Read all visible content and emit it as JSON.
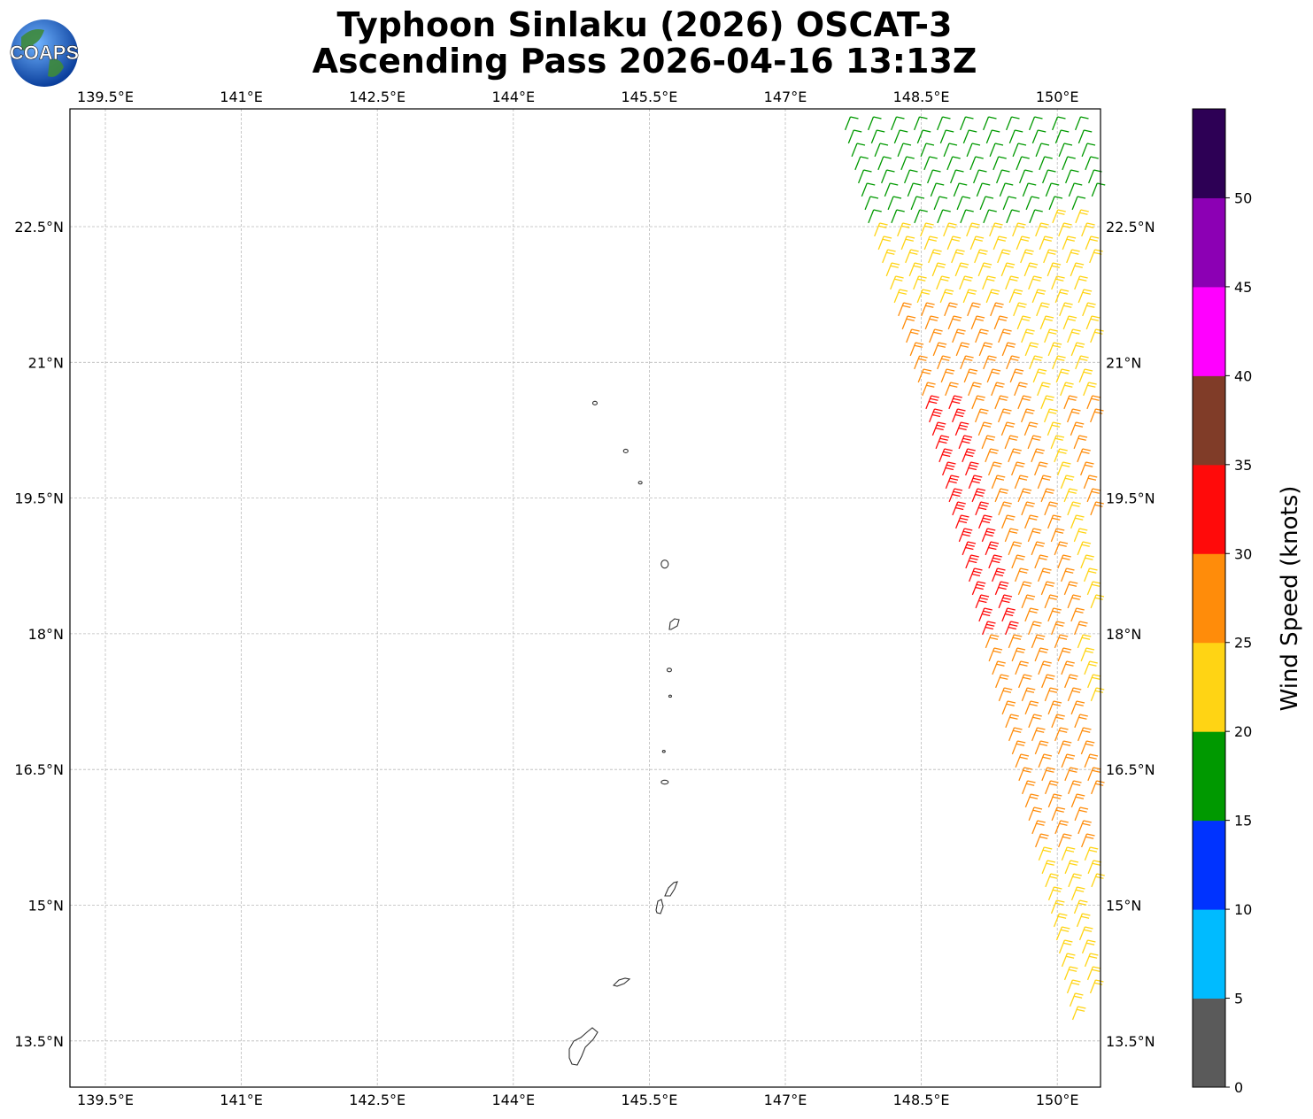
{
  "title_line1": "Typhoon Sinlaku (2026) OSCAT-3",
  "title_line2": "Ascending Pass 2026-04-16 13:13Z",
  "logo": {
    "text": "COAPS",
    "icon": "globe-icon"
  },
  "map": {
    "lon_ticks": [
      "139.5°E",
      "141°E",
      "142.5°E",
      "144°E",
      "145.5°E",
      "147°E",
      "148.5°E",
      "150°E"
    ],
    "lat_ticks": [
      "22.5°N",
      "21°N",
      "19.5°N",
      "18°N",
      "16.5°N",
      "15°N",
      "13.5°N"
    ],
    "lon_values": [
      139.5,
      141,
      142.5,
      144,
      145.5,
      147,
      148.5,
      150
    ],
    "lat_values": [
      22.5,
      21,
      19.5,
      18,
      16.5,
      15,
      13.5
    ],
    "extent": {
      "lon": [
        139.1,
        150.5
      ],
      "lat": [
        13.0,
        23.8
      ]
    },
    "grid": true,
    "islands": [
      "Farallon de Pajaros",
      "Maug",
      "Asuncion",
      "Agrihan",
      "Pagan",
      "Alamagan",
      "Guguan",
      "Sarigan",
      "Anatahan",
      "Saipan",
      "Tinian",
      "Rota",
      "Guam"
    ]
  },
  "colorbar": {
    "label": "Wind Speed (knots)",
    "ticks": [
      "0",
      "5",
      "10",
      "15",
      "20",
      "25",
      "30",
      "35",
      "40",
      "45",
      "50"
    ],
    "colors": [
      "#5a5a5a",
      "#00bbff",
      "#0033ff",
      "#009900",
      "#ffd414",
      "#ff8c0a",
      "#ff0a0a",
      "#803c28",
      "#ff00ff",
      "#8c00b4",
      "#2d0055"
    ]
  },
  "wind_barbs": {
    "units": "knots",
    "swath_edge_lon": 150.5,
    "description_rows": "green north (15-20 kt), yellow 20-25 kt, orange 25-30 kt, red 30-35 kt core near 149°E 19-21°N"
  }
}
